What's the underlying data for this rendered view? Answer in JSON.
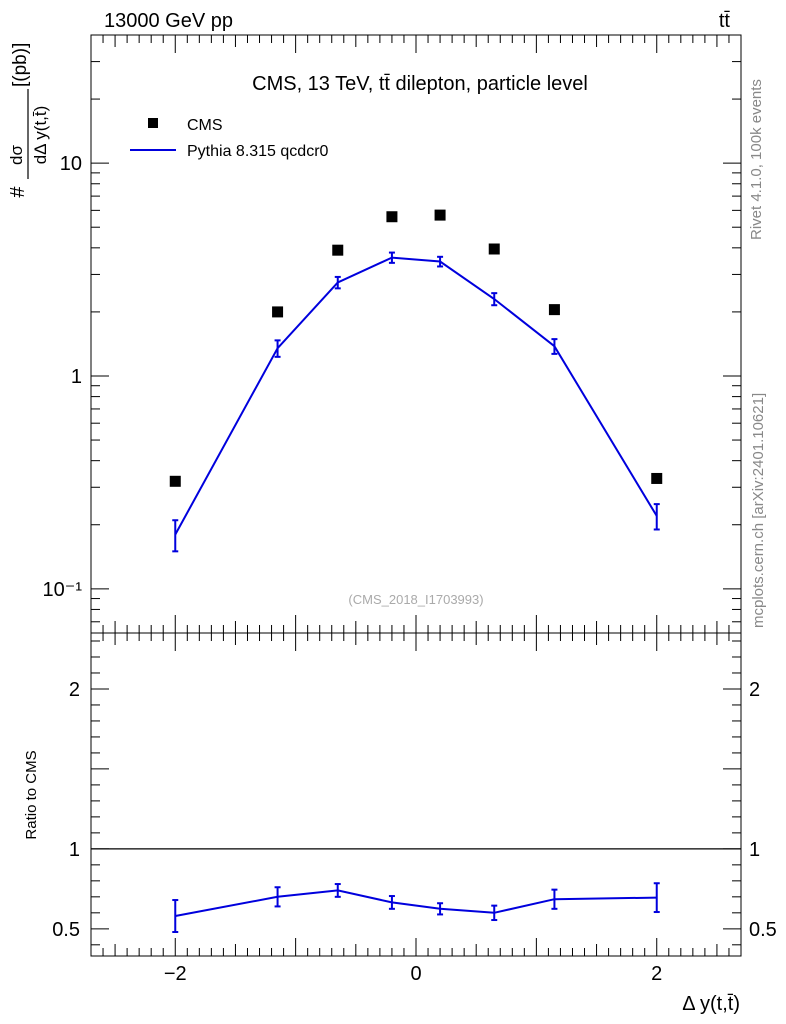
{
  "header": {
    "left": "13000 GeV pp",
    "right": "tt̄"
  },
  "side_labels": {
    "rivet": "Rivet 4.1.0,  100k events",
    "source": "mcplots.cern.ch [arXiv:2401.10621]"
  },
  "chart_data": [
    {
      "type": "scatter",
      "title": "CMS, 13 TeV, tt̄ dilepton, particle level",
      "watermark": "(CMS_2018_I1703993)",
      "ylabel": "#dσ/dΔ y(t,t̄) [(pb)]",
      "ylabel_parts": {
        "prefix": "#",
        "numerator": "dσ",
        "denominator": "dΔ y(t,t̄)",
        "unit": "[(pb)]"
      },
      "xlabel": "Δ y(t,t̄)",
      "yscale": "log",
      "xlim": [
        -2.7,
        2.7
      ],
      "ylim": [
        0.062,
        40
      ],
      "y_tick_labels": [
        {
          "value": 0.1,
          "label": "10⁻¹"
        },
        {
          "value": 1,
          "label": "1"
        },
        {
          "value": 10,
          "label": "10"
        }
      ],
      "legend": {
        "position": "top-left",
        "entries": [
          "CMS",
          "Pythia 8.315 qcdcr0"
        ]
      },
      "series": [
        {
          "name": "CMS",
          "style": "black-square-markers",
          "x": [
            -2.0,
            -1.15,
            -0.65,
            -0.2,
            0.2,
            0.65,
            1.15,
            2.0
          ],
          "y": [
            0.32,
            2.0,
            3.9,
            5.6,
            5.7,
            3.95,
            2.05,
            0.33
          ]
        },
        {
          "name": "Pythia 8.315 qcdcr0",
          "style": "blue-line-with-errors",
          "color": "#0000dd",
          "x": [
            -2.0,
            -1.15,
            -0.65,
            -0.2,
            0.2,
            0.65,
            1.15,
            2.0
          ],
          "y": [
            0.18,
            1.35,
            2.75,
            3.6,
            3.45,
            2.3,
            1.38,
            0.22
          ],
          "err": [
            0.03,
            0.12,
            0.17,
            0.2,
            0.18,
            0.15,
            0.11,
            0.03
          ]
        }
      ]
    },
    {
      "type": "line",
      "ylabel": "Ratio to CMS",
      "xlabel": "Δ y(t,t̄)",
      "xlim": [
        -2.7,
        2.7
      ],
      "ylim": [
        0.33,
        2.35
      ],
      "y_tick_labels": [
        {
          "value": 0.5,
          "label": "0.5"
        },
        {
          "value": 1,
          "label": "1"
        },
        {
          "value": 2,
          "label": "2"
        }
      ],
      "x_tick_labels": [
        {
          "value": -2,
          "label": "−2"
        },
        {
          "value": 0,
          "label": "0"
        },
        {
          "value": 2,
          "label": "2"
        }
      ],
      "reference_line": 1,
      "series": [
        {
          "name": "Pythia 8.315 qcdcr0",
          "color": "#0000dd",
          "x": [
            -2.0,
            -1.15,
            -0.65,
            -0.2,
            0.2,
            0.65,
            1.15,
            2.0
          ],
          "y": [
            0.58,
            0.7,
            0.74,
            0.665,
            0.625,
            0.6,
            0.685,
            0.695
          ],
          "err": [
            0.1,
            0.06,
            0.04,
            0.04,
            0.035,
            0.045,
            0.06,
            0.09
          ]
        }
      ]
    }
  ]
}
